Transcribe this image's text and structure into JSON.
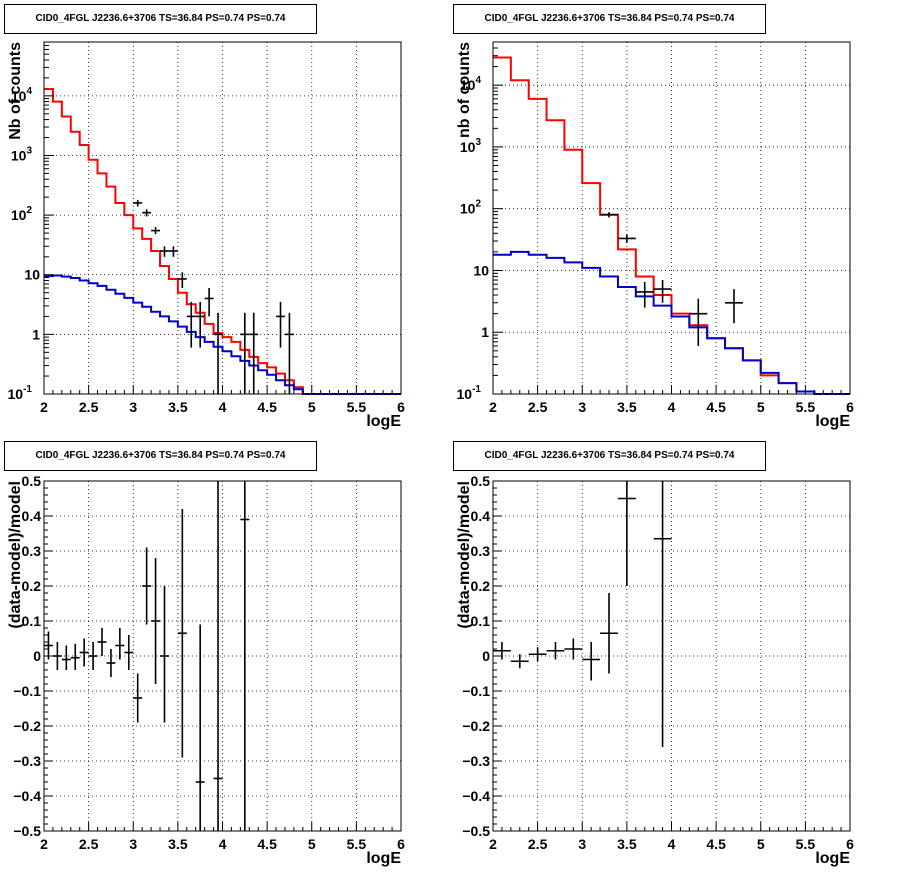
{
  "chart_data": [
    {
      "type": "histogram",
      "title": "CID0_4FGL J2236.6+3706 TS=36.84 PS=0.74 PS=0.74",
      "xlabel": "logE",
      "ylabel": "Nb of counts",
      "xlim": [
        2,
        6
      ],
      "ylim": [
        0.1,
        80000
      ],
      "yscale": "log",
      "grid": true,
      "x_ticks": [
        "2",
        "2.5",
        "3",
        "3.5",
        "4",
        "4.5",
        "5",
        "5.5",
        "6"
      ],
      "y_ticks": [
        "10⁻¹",
        "1",
        "10",
        "10²",
        "10³",
        "10⁴"
      ],
      "series": [
        {
          "color": "#ff0000",
          "bin_edges": [
            2.0,
            2.1,
            2.2,
            2.3,
            2.4,
            2.5,
            2.6,
            2.7,
            2.8,
            2.9,
            3.0,
            3.1,
            3.2,
            3.3,
            3.4,
            3.5,
            3.6,
            3.7,
            3.8,
            3.9,
            4.0,
            4.1,
            4.2,
            4.3,
            4.4,
            4.5,
            4.6,
            4.7,
            4.8,
            4.9,
            5.0,
            5.1,
            5.2,
            5.3,
            5.4,
            5.5,
            5.6,
            5.7,
            5.8,
            5.9,
            6.0
          ],
          "values": [
            13000,
            8000,
            4500,
            2500,
            1500,
            850,
            500,
            300,
            160,
            100,
            60,
            40,
            25,
            14,
            8.5,
            5.0,
            3.2,
            2.3,
            1.5,
            1.05,
            0.9,
            0.75,
            0.55,
            0.42,
            0.33,
            0.28,
            0.22,
            0.17,
            0.13,
            0.1,
            0.1,
            0.1,
            0.1,
            0.1,
            0.1,
            0.1,
            0.1,
            0.1,
            0.1,
            0.1
          ]
        },
        {
          "color": "#0000cc",
          "bin_edges": [
            2.0,
            2.1,
            2.2,
            2.3,
            2.4,
            2.5,
            2.6,
            2.7,
            2.8,
            2.9,
            3.0,
            3.1,
            3.2,
            3.3,
            3.4,
            3.5,
            3.6,
            3.7,
            3.8,
            3.9,
            4.0,
            4.1,
            4.2,
            4.3,
            4.4,
            4.5,
            4.6,
            4.7,
            4.8,
            4.9,
            5.0,
            5.1,
            5.2,
            5.3,
            5.4,
            5.5,
            5.6,
            5.7,
            5.8,
            5.9,
            6.0
          ],
          "values": [
            9.5,
            9.7,
            9.3,
            8.8,
            8.0,
            7.2,
            6.5,
            5.6,
            4.8,
            4.1,
            3.4,
            2.9,
            2.4,
            2.0,
            1.65,
            1.35,
            1.1,
            0.9,
            0.75,
            0.62,
            0.52,
            0.43,
            0.36,
            0.3,
            0.25,
            0.21,
            0.17,
            0.14,
            0.12,
            0.1,
            0.1,
            0.1,
            0.1,
            0.1,
            0.1,
            0.1,
            0.1,
            0.1,
            0.1,
            0.1
          ]
        }
      ],
      "points": [
        {
          "x": 3.05,
          "y": 160,
          "dx": 0.05,
          "ylo": 140,
          "yhi": 180
        },
        {
          "x": 3.15,
          "y": 110,
          "dx": 0.05,
          "ylo": 95,
          "yhi": 125
        },
        {
          "x": 3.25,
          "y": 55,
          "dx": 0.05,
          "ylo": 48,
          "yhi": 63
        },
        {
          "x": 3.35,
          "y": 25,
          "dx": 0.05,
          "ylo": 20,
          "yhi": 30
        },
        {
          "x": 3.45,
          "y": 25,
          "dx": 0.05,
          "ylo": 20,
          "yhi": 30
        },
        {
          "x": 3.55,
          "y": 8.5,
          "dx": 0.05,
          "ylo": 6,
          "yhi": 11
        },
        {
          "x": 3.65,
          "y": 2,
          "dx": 0.05,
          "ylo": 0.6,
          "yhi": 3.5
        },
        {
          "x": 3.75,
          "y": 2,
          "dx": 0.05,
          "ylo": 0.6,
          "yhi": 3.5
        },
        {
          "x": 3.85,
          "y": 4,
          "dx": 0.05,
          "ylo": 2,
          "yhi": 6
        },
        {
          "x": 3.95,
          "y": 1,
          "dx": 0.05,
          "ylo": 0.1,
          "yhi": 2.3
        },
        {
          "x": 4.25,
          "y": 1,
          "dx": 0.05,
          "ylo": 0.1,
          "yhi": 2.3
        },
        {
          "x": 4.35,
          "y": 1,
          "dx": 0.05,
          "ylo": 0.1,
          "yhi": 2.3
        },
        {
          "x": 4.65,
          "y": 2,
          "dx": 0.05,
          "ylo": 0.6,
          "yhi": 3.5
        },
        {
          "x": 4.75,
          "y": 1,
          "dx": 0.05,
          "ylo": 0.1,
          "yhi": 2.3
        }
      ]
    },
    {
      "type": "histogram",
      "title": "CID0_4FGL J2236.6+3706 TS=36.84 PS=0.74 PS=0.74",
      "xlabel": "logE",
      "ylabel": "nb of counts",
      "xlim": [
        2,
        6
      ],
      "ylim": [
        0.1,
        50000
      ],
      "yscale": "log",
      "grid": true,
      "x_ticks": [
        "2",
        "2.5",
        "3",
        "3.5",
        "4",
        "4.5",
        "5",
        "5.5",
        "6"
      ],
      "y_ticks": [
        "10⁻¹",
        "1",
        "10",
        "10²",
        "10³",
        "10⁴"
      ],
      "series": [
        {
          "color": "#ff0000",
          "bin_edges": [
            2.0,
            2.2,
            2.4,
            2.6,
            2.8,
            3.0,
            3.2,
            3.4,
            3.6,
            3.8,
            4.0,
            4.2,
            4.4,
            4.6,
            4.8,
            5.0,
            5.2,
            5.4,
            5.6,
            5.8,
            6.0
          ],
          "values": [
            28000,
            12000,
            6000,
            2700,
            900,
            260,
            80,
            22,
            8,
            4,
            2,
            1.3,
            0.8,
            0.55,
            0.35,
            0.2,
            0.15,
            0.11,
            0.1,
            0.1
          ]
        },
        {
          "color": "#0000cc",
          "bin_edges": [
            2.0,
            2.2,
            2.4,
            2.6,
            2.8,
            3.0,
            3.2,
            3.4,
            3.6,
            3.8,
            4.0,
            4.2,
            4.4,
            4.6,
            4.8,
            5.0,
            5.2,
            5.4,
            5.6,
            5.8,
            6.0
          ],
          "values": [
            18,
            20,
            18,
            16,
            13.5,
            11,
            8,
            5.4,
            3.8,
            2.7,
            1.8,
            1.2,
            0.8,
            0.55,
            0.35,
            0.22,
            0.15,
            0.11,
            0.1,
            0.1
          ]
        }
      ],
      "points": [
        {
          "x": 3.3,
          "y": 80,
          "dx": 0.1,
          "ylo": 72,
          "yhi": 88
        },
        {
          "x": 3.5,
          "y": 33,
          "dx": 0.1,
          "ylo": 28,
          "yhi": 38
        },
        {
          "x": 3.7,
          "y": 4.5,
          "dx": 0.1,
          "ylo": 2.5,
          "yhi": 6.5
        },
        {
          "x": 3.9,
          "y": 5,
          "dx": 0.1,
          "ylo": 3,
          "yhi": 7
        },
        {
          "x": 4.3,
          "y": 2,
          "dx": 0.1,
          "ylo": 0.6,
          "yhi": 3.5
        },
        {
          "x": 4.7,
          "y": 3,
          "dx": 0.1,
          "ylo": 1.4,
          "yhi": 5
        }
      ]
    },
    {
      "type": "scatter",
      "title": "CID0_4FGL J2236.6+3706 TS=36.84 PS=0.74 PS=0.74",
      "xlabel": "logE",
      "ylabel": "(data-model)/model",
      "xlim": [
        2,
        6
      ],
      "ylim": [
        -0.5,
        0.5
      ],
      "grid": true,
      "x_ticks": [
        "2",
        "2.5",
        "3",
        "3.5",
        "4",
        "4.5",
        "5",
        "5.5",
        "6"
      ],
      "y_ticks": [
        "−0.5",
        "−0.4",
        "−0.3",
        "−0.2",
        "−0.1",
        "0",
        "0.1",
        "0.2",
        "0.3",
        "0.4",
        "0.5"
      ],
      "points": [
        {
          "x": 2.05,
          "y": 0.03,
          "dx": 0.05,
          "ylo": -0.01,
          "yhi": 0.07
        },
        {
          "x": 2.15,
          "y": 0.0,
          "dx": 0.05,
          "ylo": -0.04,
          "yhi": 0.04
        },
        {
          "x": 2.25,
          "y": -0.01,
          "dx": 0.05,
          "ylo": -0.04,
          "yhi": 0.03
        },
        {
          "x": 2.35,
          "y": -0.005,
          "dx": 0.05,
          "ylo": -0.04,
          "yhi": 0.035
        },
        {
          "x": 2.45,
          "y": 0.01,
          "dx": 0.05,
          "ylo": -0.03,
          "yhi": 0.05
        },
        {
          "x": 2.55,
          "y": 0.0,
          "dx": 0.05,
          "ylo": -0.04,
          "yhi": 0.04
        },
        {
          "x": 2.65,
          "y": 0.04,
          "dx": 0.05,
          "ylo": 0.0,
          "yhi": 0.08
        },
        {
          "x": 2.75,
          "y": -0.02,
          "dx": 0.05,
          "ylo": -0.06,
          "yhi": 0.02
        },
        {
          "x": 2.85,
          "y": 0.03,
          "dx": 0.05,
          "ylo": -0.01,
          "yhi": 0.08
        },
        {
          "x": 2.95,
          "y": 0.01,
          "dx": 0.05,
          "ylo": -0.04,
          "yhi": 0.06
        },
        {
          "x": 3.05,
          "y": -0.12,
          "dx": 0.05,
          "ylo": -0.19,
          "yhi": -0.05
        },
        {
          "x": 3.15,
          "y": 0.2,
          "dx": 0.05,
          "ylo": 0.09,
          "yhi": 0.31
        },
        {
          "x": 3.25,
          "y": 0.1,
          "dx": 0.05,
          "ylo": -0.08,
          "yhi": 0.28
        },
        {
          "x": 3.35,
          "y": 0.0,
          "dx": 0.05,
          "ylo": -0.19,
          "yhi": 0.2
        },
        {
          "x": 3.55,
          "y": 0.065,
          "dx": 0.05,
          "ylo": -0.29,
          "yhi": 0.42
        },
        {
          "x": 3.75,
          "y": -0.36,
          "dx": 0.05,
          "ylo": -0.5,
          "yhi": 0.09
        },
        {
          "x": 3.95,
          "y": -0.35,
          "dx": 0.05,
          "ylo": -0.5,
          "yhi": 0.5
        },
        {
          "x": 4.25,
          "y": 0.39,
          "dx": 0.05,
          "ylo": -0.5,
          "yhi": 0.5
        }
      ]
    },
    {
      "type": "scatter",
      "title": "CID0_4FGL J2236.6+3706 TS=36.84 PS=0.74 PS=0.74",
      "xlabel": "logE",
      "ylabel": "(data-model)/model",
      "xlim": [
        2,
        6
      ],
      "ylim": [
        -0.5,
        0.5
      ],
      "grid": true,
      "x_ticks": [
        "2",
        "2.5",
        "3",
        "3.5",
        "4",
        "4.5",
        "5",
        "5.5",
        "6"
      ],
      "y_ticks": [
        "−0.5",
        "−0.4",
        "−0.3",
        "−0.2",
        "−0.1",
        "0",
        "0.1",
        "0.2",
        "0.3",
        "0.4",
        "0.5"
      ],
      "points": [
        {
          "x": 2.1,
          "y": 0.015,
          "dx": 0.1,
          "ylo": -0.01,
          "yhi": 0.04
        },
        {
          "x": 2.3,
          "y": -0.015,
          "dx": 0.1,
          "ylo": -0.035,
          "yhi": 0.005
        },
        {
          "x": 2.5,
          "y": 0.005,
          "dx": 0.1,
          "ylo": -0.015,
          "yhi": 0.025
        },
        {
          "x": 2.7,
          "y": 0.015,
          "dx": 0.1,
          "ylo": -0.01,
          "yhi": 0.04
        },
        {
          "x": 2.9,
          "y": 0.02,
          "dx": 0.1,
          "ylo": -0.01,
          "yhi": 0.05
        },
        {
          "x": 3.1,
          "y": -0.01,
          "dx": 0.1,
          "ylo": -0.07,
          "yhi": 0.04
        },
        {
          "x": 3.3,
          "y": 0.065,
          "dx": 0.1,
          "ylo": -0.05,
          "yhi": 0.18
        },
        {
          "x": 3.5,
          "y": 0.45,
          "dx": 0.1,
          "ylo": 0.2,
          "yhi": 0.5
        },
        {
          "x": 3.9,
          "y": 0.335,
          "dx": 0.1,
          "ylo": -0.26,
          "yhi": 0.5
        }
      ]
    }
  ]
}
